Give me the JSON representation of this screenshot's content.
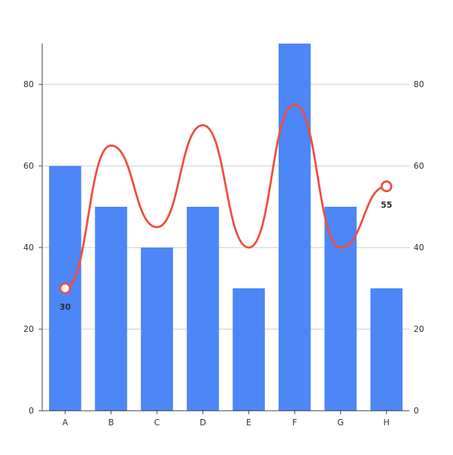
{
  "chart_data": {
    "type": "bar",
    "categories": [
      "A",
      "B",
      "C",
      "D",
      "E",
      "F",
      "G",
      "H"
    ],
    "bar_series": {
      "values": [
        60,
        50,
        40,
        50,
        30,
        90,
        50,
        30
      ],
      "color": "#4d86f7"
    },
    "line_series": {
      "values": [
        30,
        65,
        45,
        70,
        40,
        75,
        40,
        55
      ],
      "color": "#f04e3f",
      "smooth": true,
      "labeled_points": [
        {
          "index": 0,
          "label": "30"
        },
        {
          "index": 7,
          "label": "55"
        }
      ]
    },
    "y_left": {
      "ylim": [
        0,
        90
      ],
      "ticks": [
        "0",
        "20",
        "40",
        "60",
        "80"
      ]
    },
    "y_right": {
      "ylim": [
        0,
        90
      ],
      "ticks": [
        "0",
        "20",
        "40",
        "60",
        "80"
      ]
    },
    "grid": true,
    "title": "",
    "xlabel": "",
    "ylabel": ""
  }
}
